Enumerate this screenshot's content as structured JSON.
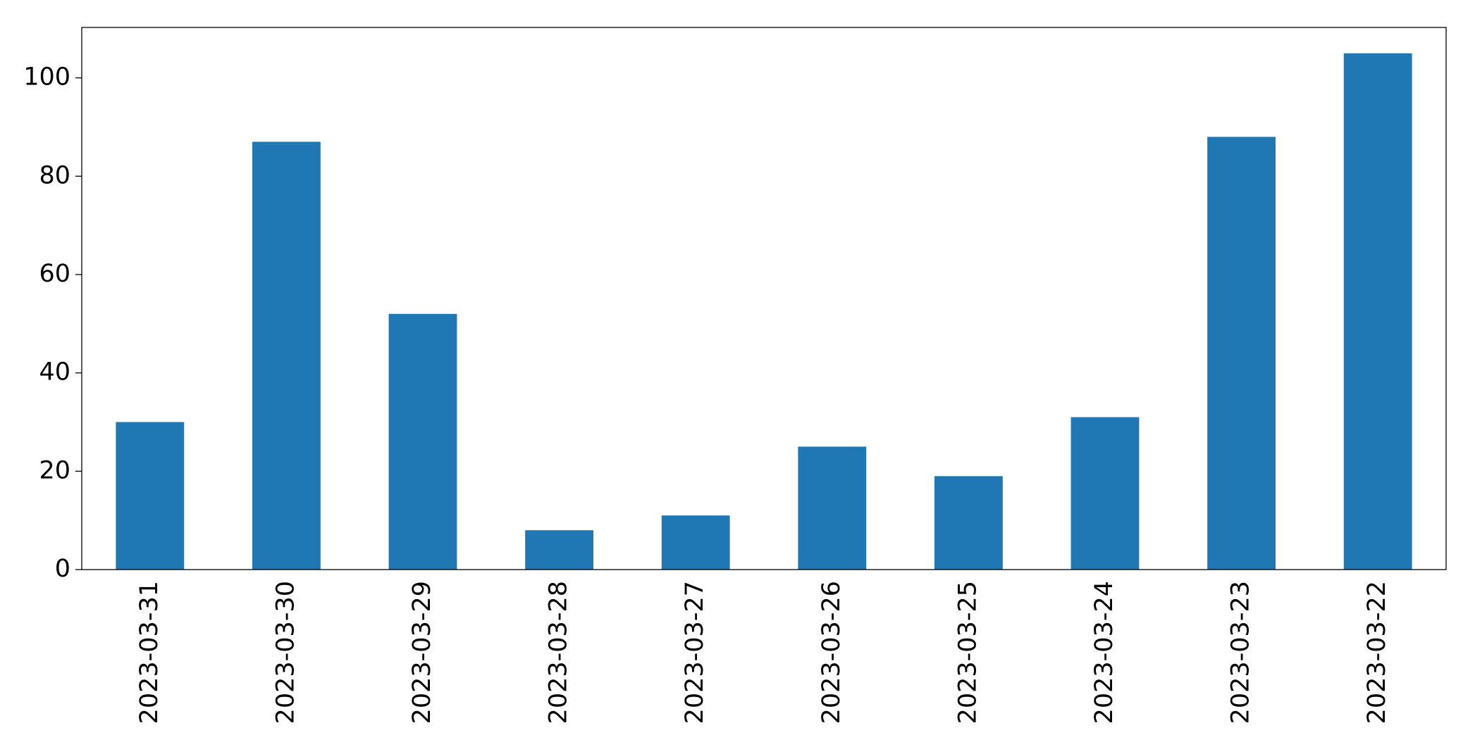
{
  "chart_data": {
    "type": "bar",
    "categories": [
      "2023-03-31",
      "2023-03-30",
      "2023-03-29",
      "2023-03-28",
      "2023-03-27",
      "2023-03-26",
      "2023-03-25",
      "2023-03-24",
      "2023-03-23",
      "2023-03-22"
    ],
    "values": [
      30,
      87,
      52,
      8,
      11,
      25,
      19,
      31,
      88,
      105
    ],
    "color": "#1f77b4",
    "ylim": [
      0,
      110.25
    ],
    "yticks": [
      0,
      20,
      40,
      60,
      80,
      100
    ],
    "grid": false
  }
}
